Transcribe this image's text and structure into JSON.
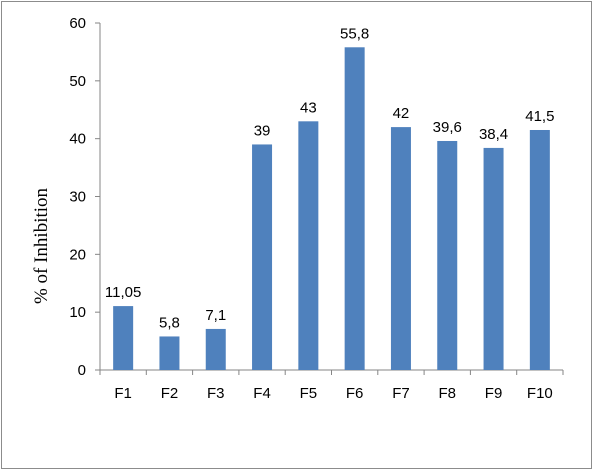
{
  "chart_data": {
    "type": "bar",
    "ylabel": "% of Inhibition",
    "xlabel": "",
    "ylim": [
      0,
      60
    ],
    "ytick_step": 10,
    "grid": false,
    "legend": "none",
    "categories": [
      "F1",
      "F2",
      "F3",
      "F4",
      "F5",
      "F6",
      "F7",
      "F8",
      "F9",
      "F10"
    ],
    "values": [
      11.05,
      5.8,
      7.1,
      39,
      43,
      55.8,
      42,
      39.6,
      38.4,
      41.5
    ],
    "data_labels": [
      "11,05",
      "5,8",
      "7,1",
      "39",
      "43",
      "55,8",
      "42",
      "39,6",
      "38,4",
      "41,5"
    ],
    "bar_color": "#4f81bd"
  }
}
